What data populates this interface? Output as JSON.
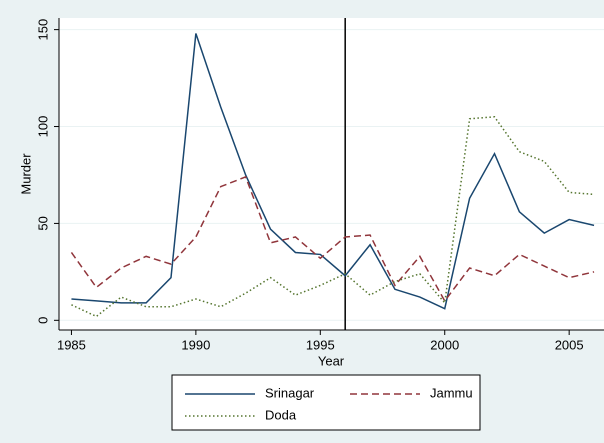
{
  "chart_data": {
    "type": "line",
    "xlabel": "Year",
    "ylabel": "Murder",
    "x": [
      1985,
      1986,
      1987,
      1988,
      1989,
      1990,
      1991,
      1992,
      1993,
      1994,
      1995,
      1996,
      1997,
      1998,
      1999,
      2000,
      2001,
      2002,
      2003,
      2004,
      2005,
      2006
    ],
    "series": [
      {
        "name": "Srinagar",
        "color": "#1a476f",
        "dash": "solid",
        "values": [
          11,
          10,
          9,
          9,
          22,
          148,
          110,
          75,
          47,
          35,
          34,
          23,
          39,
          16,
          12,
          6,
          63,
          86,
          56,
          45,
          52,
          49
        ]
      },
      {
        "name": "Jammu",
        "color": "#90353b",
        "dash": "dashed",
        "values": [
          35,
          17,
          27,
          33,
          29,
          43,
          69,
          74,
          40,
          43,
          32,
          43,
          44,
          18,
          33,
          10,
          27,
          23,
          34,
          28,
          22,
          25
        ]
      },
      {
        "name": "Doda",
        "color": "#55752f",
        "dash": "dotted",
        "values": [
          8,
          2,
          12,
          7,
          7,
          11,
          7,
          14,
          22,
          13,
          18,
          24,
          13,
          20,
          24,
          9,
          104,
          105,
          87,
          82,
          66,
          65
        ]
      }
    ],
    "vline": 1996,
    "xlim": [
      1984.5,
      2006.4
    ],
    "ylim": [
      -5,
      156
    ],
    "xticks": [
      1985,
      1990,
      1995,
      2000,
      2005
    ],
    "yticks": [
      0,
      50,
      100,
      150
    ],
    "grid": true
  }
}
